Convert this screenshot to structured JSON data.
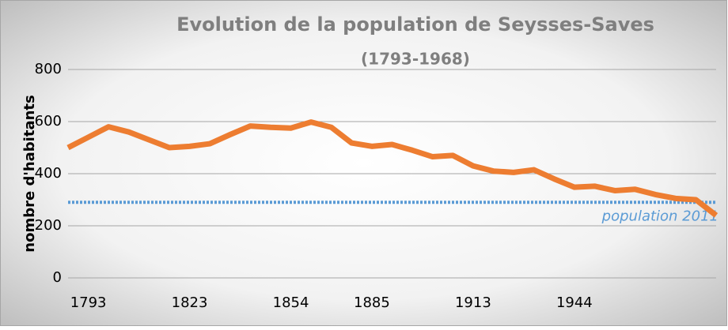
{
  "chart_data": {
    "type": "line",
    "title": "Evolution de la population de Seysses-Saves",
    "subtitle": "(1793-1968)",
    "ylabel": "nombre d'habitants",
    "categories": [
      null,
      "1793",
      null,
      null,
      null,
      null,
      "1823",
      null,
      null,
      null,
      null,
      "1854",
      null,
      null,
      null,
      "1885",
      null,
      null,
      null,
      null,
      "1913",
      null,
      null,
      null,
      null,
      "1944",
      null,
      null,
      null,
      null,
      null,
      null,
      null
    ],
    "series": [
      {
        "name": null,
        "color": "#ed7d31",
        "values": [
          500,
          540,
          580,
          560,
          530,
          500,
          505,
          515,
          550,
          583,
          578,
          575,
          598,
          578,
          518,
          505,
          512,
          490,
          465,
          470,
          430,
          410,
          405,
          415,
          380,
          348,
          352,
          335,
          340,
          320,
          305,
          300,
          240
        ]
      }
    ],
    "reference_line": {
      "value": 290,
      "label": "population 2011",
      "color": "#5b9bd5"
    },
    "ylim": [
      0,
      800
    ],
    "yticks": [
      0,
      200,
      400,
      600,
      800
    ],
    "grid": true
  }
}
